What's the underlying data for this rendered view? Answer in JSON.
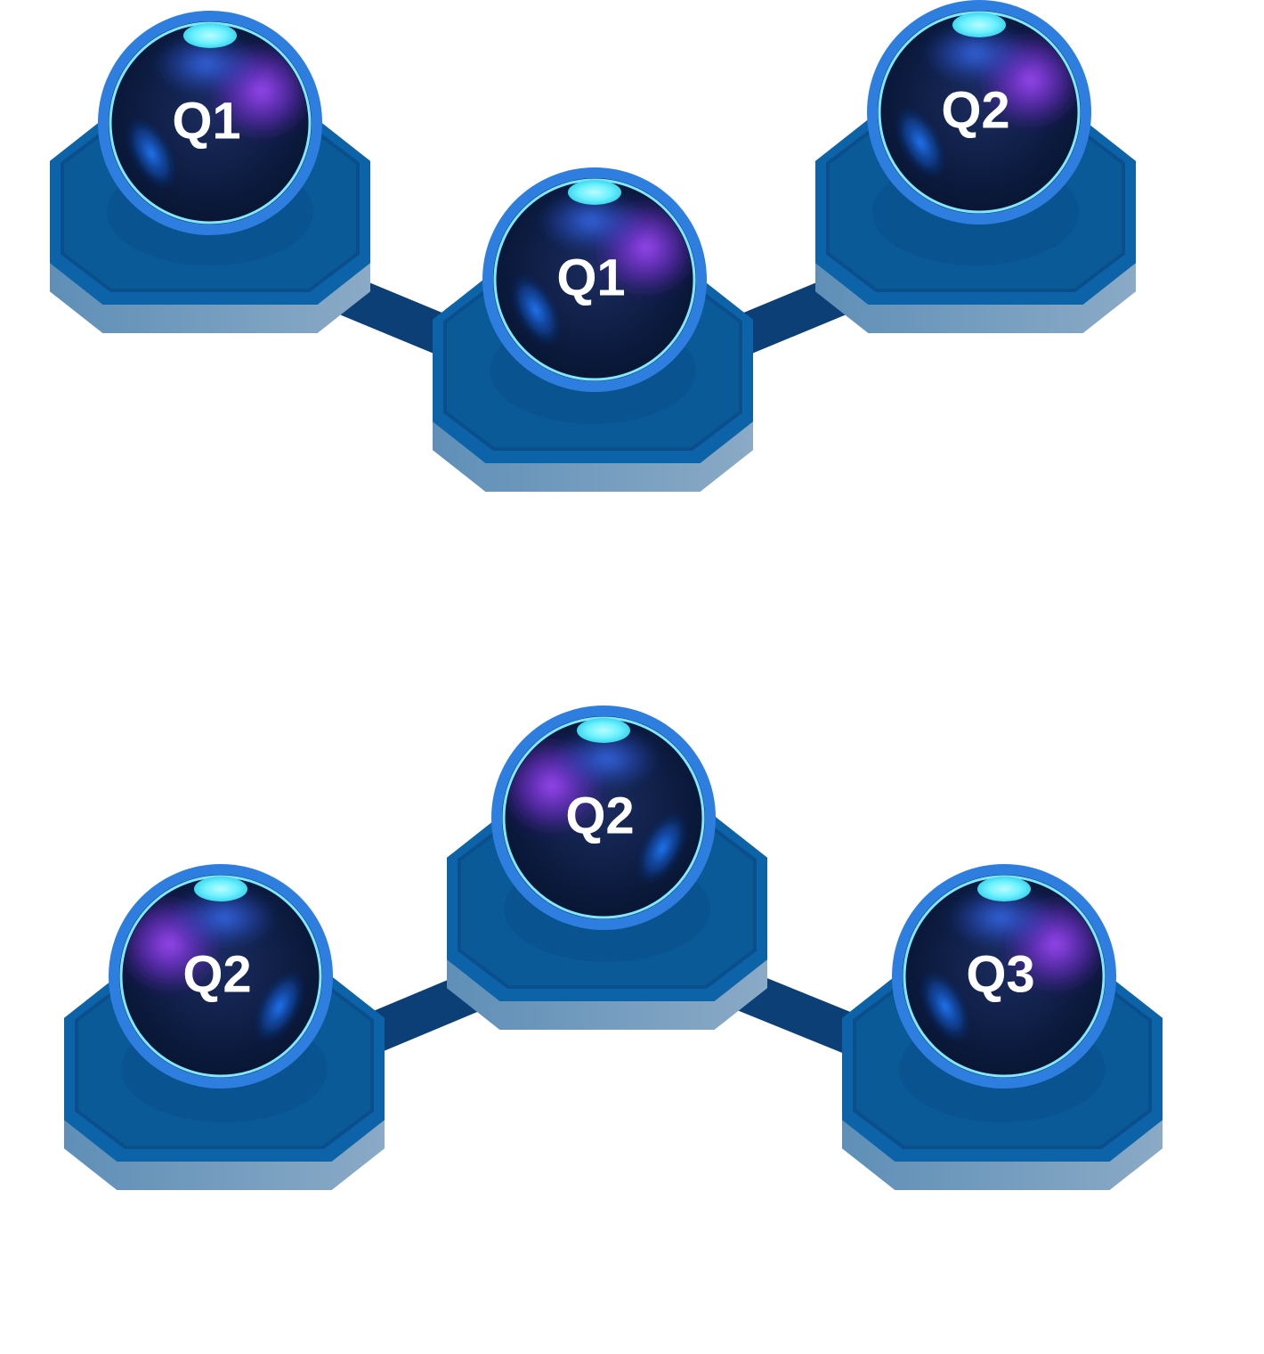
{
  "diagrams": [
    {
      "nodes": [
        {
          "id": "top-left",
          "label": "Q1"
        },
        {
          "id": "top-middle",
          "label": "Q1"
        },
        {
          "id": "top-right",
          "label": "Q2"
        }
      ],
      "edges": [
        [
          "top-left",
          "top-middle"
        ],
        [
          "top-middle",
          "top-right"
        ]
      ]
    },
    {
      "nodes": [
        {
          "id": "bottom-left",
          "label": "Q2"
        },
        {
          "id": "bottom-middle",
          "label": "Q2"
        },
        {
          "id": "bottom-right",
          "label": "Q3"
        }
      ],
      "edges": [
        [
          "bottom-left",
          "bottom-middle"
        ],
        [
          "bottom-middle",
          "bottom-right"
        ]
      ]
    }
  ],
  "colors": {
    "platform_top": "#0a5a98",
    "platform_edge": "#0d63a8",
    "platform_rim": "#0a4f8c",
    "platform_shadow": "#6f9bbf",
    "connector": "#0b3f75",
    "sphere_ring": "#2e7ee0",
    "sphere_inner_ring": "#7fe8ff",
    "sphere_body": "#0a1a3a",
    "glow_purple": "#9b45ff",
    "glow_blue": "#1f78ff",
    "highlight_cyan": "#6ef2ff"
  }
}
